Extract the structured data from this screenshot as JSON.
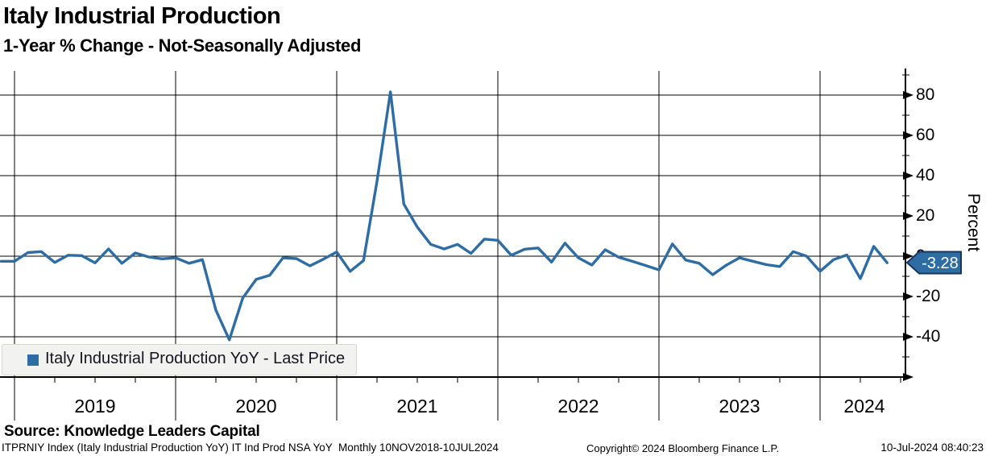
{
  "header": {
    "title": "Italy Industrial Production",
    "subtitle": "1-Year % Change - Not-Seasonally Adjusted"
  },
  "chart_data": {
    "type": "line",
    "title": "Italy Industrial Production",
    "subtitle": "1-Year % Change - Not-Seasonally Adjusted",
    "ylabel": "Percent",
    "y_axis_side": "right",
    "ylim": [
      -60,
      92
    ],
    "y_major_ticks": [
      80,
      60,
      40,
      20,
      0,
      -20,
      -40
    ],
    "y_minor_ticks": [
      90,
      70,
      50,
      30,
      10,
      -10,
      -30,
      -50
    ],
    "x_year_labels": [
      "2019",
      "2020",
      "2021",
      "2022",
      "2023",
      "2024"
    ],
    "grid": true,
    "legend_position": "bottom-left",
    "frequency": "monthly",
    "x_start": "2018-11",
    "x_end": "2024-05",
    "series": [
      {
        "name": "Italy Industrial Production YoY - Last Price",
        "color": "#2e6da4",
        "values": [
          -2.5,
          -2.5,
          1.8,
          2.3,
          -3.1,
          0.5,
          0.3,
          -3.3,
          3.6,
          -3.5,
          1.6,
          -0.4,
          -1.3,
          -0.8,
          -3.5,
          -1.7,
          -26.8,
          -41.5,
          -20.8,
          -11.5,
          -9.5,
          -0.8,
          -1.2,
          -4.8,
          -1.5,
          2.1,
          -7.5,
          -2.1,
          37.2,
          81.6,
          25.9,
          14.5,
          5.9,
          3.6,
          5.9,
          1.4,
          8.5,
          7.9,
          0.5,
          3.5,
          4.1,
          -2.9,
          6.5,
          -0.8,
          -4.4,
          3.2,
          -0.5,
          -2.5,
          -4.6,
          -6.8,
          6.1,
          -1.9,
          -3.5,
          -9.2,
          -4.5,
          -0.8,
          -2.5,
          -4.2,
          -5.1,
          2.3,
          0.0,
          -7.5,
          -1.7,
          0.6,
          -11.1,
          4.9,
          -3.28
        ]
      }
    ],
    "last_price": -3.28
  },
  "y_axis": {
    "label": "Percent"
  },
  "legend": {
    "label": "Italy Industrial Production YoY - Last Price",
    "swatch_color": "#2e6da4"
  },
  "badge": {
    "value": "-3.28",
    "fill": "#2e6da4",
    "border": "#17365d"
  },
  "footer": {
    "source": "Source: Knowledge Leaders Capital",
    "security_line": "ITPRNIY Index (Italy Industrial Production YoY) IT Ind Prod NSA YoY  Monthly 10NOV2018-10JUL2024",
    "copyright": "Copyright© 2024 Bloomberg Finance L.P.",
    "timestamp": "10-Jul-2024 08:40:23"
  },
  "colors": {
    "line": "#2e6da4",
    "grid": "#000000",
    "background": "#ffffff"
  }
}
